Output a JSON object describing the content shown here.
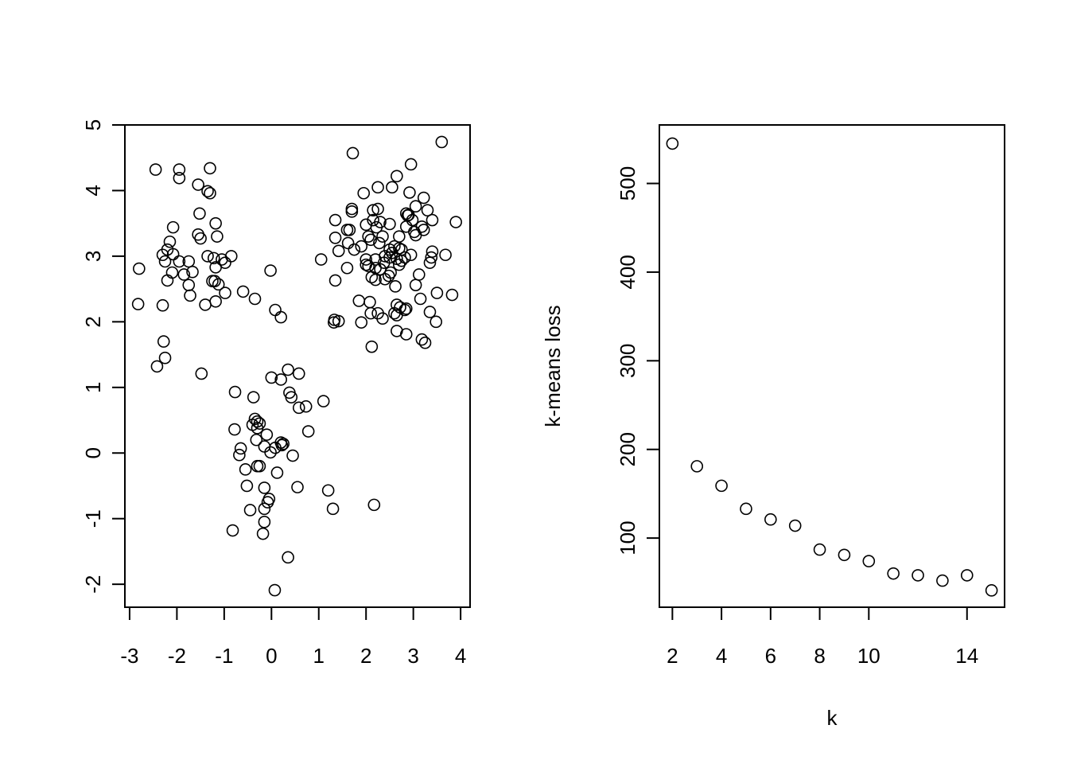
{
  "chart_data": [
    {
      "type": "scatter",
      "title": "",
      "xlabel": "",
      "ylabel": "",
      "xlim": [
        -3.1,
        4.2
      ],
      "ylim": [
        -2.35,
        5.0
      ],
      "x_ticks": [
        -3,
        -2,
        -1,
        0,
        1,
        2,
        3,
        4
      ],
      "x_tick_labels": [
        "-3",
        "-2",
        "-1",
        "0",
        "1",
        "2",
        "3",
        "4"
      ],
      "y_ticks": [
        -2,
        -1,
        0,
        1,
        2,
        3,
        4,
        5
      ],
      "y_tick_labels": [
        "-2",
        "-1",
        "0",
        "1",
        "2",
        "3",
        "4",
        "5"
      ],
      "grid": false,
      "marker": "open-circle",
      "points": [
        [
          -2.45,
          4.32
        ],
        [
          -1.95,
          4.32
        ],
        [
          -1.3,
          4.34
        ],
        [
          -1.95,
          4.19
        ],
        [
          -1.55,
          4.09
        ],
        [
          -1.35,
          3.99
        ],
        [
          -1.3,
          3.96
        ],
        [
          -1.52,
          3.65
        ],
        [
          -1.18,
          3.5
        ],
        [
          -2.08,
          3.44
        ],
        [
          -1.55,
          3.33
        ],
        [
          -1.5,
          3.27
        ],
        [
          -1.15,
          3.3
        ],
        [
          -2.15,
          3.22
        ],
        [
          -2.2,
          3.1
        ],
        [
          -2.3,
          3.02
        ],
        [
          -2.08,
          3.03
        ],
        [
          -1.35,
          3.0
        ],
        [
          -0.85,
          3.0
        ],
        [
          -2.25,
          2.92
        ],
        [
          -1.95,
          2.92
        ],
        [
          -1.75,
          2.92
        ],
        [
          -1.05,
          2.95
        ],
        [
          -1.22,
          2.97
        ],
        [
          -0.98,
          2.9
        ],
        [
          -1.18,
          2.83
        ],
        [
          -2.1,
          2.75
        ],
        [
          -1.85,
          2.72
        ],
        [
          -1.67,
          2.76
        ],
        [
          -2.2,
          2.63
        ],
        [
          -1.25,
          2.62
        ],
        [
          -1.2,
          2.62
        ],
        [
          -1.12,
          2.57
        ],
        [
          -1.75,
          2.56
        ],
        [
          -0.98,
          2.44
        ],
        [
          -0.6,
          2.46
        ],
        [
          -1.72,
          2.4
        ],
        [
          -0.35,
          2.35
        ],
        [
          -1.18,
          2.31
        ],
        [
          -2.82,
          2.27
        ],
        [
          -2.3,
          2.25
        ],
        [
          -1.4,
          2.26
        ],
        [
          -2.8,
          2.81
        ],
        [
          -0.02,
          2.78
        ],
        [
          0.08,
          2.18
        ],
        [
          0.2,
          2.07
        ],
        [
          -2.28,
          1.7
        ],
        [
          -2.25,
          1.45
        ],
        [
          -2.42,
          1.32
        ],
        [
          -1.48,
          1.21
        ],
        [
          0.0,
          1.15
        ],
        [
          0.2,
          1.12
        ],
        [
          0.35,
          1.27
        ],
        [
          0.58,
          1.21
        ],
        [
          0.38,
          0.92
        ],
        [
          0.42,
          0.85
        ],
        [
          -0.77,
          0.93
        ],
        [
          -0.38,
          0.85
        ],
        [
          1.1,
          0.79
        ],
        [
          0.58,
          0.69
        ],
        [
          0.73,
          0.71
        ],
        [
          -0.35,
          0.52
        ],
        [
          -0.3,
          0.48
        ],
        [
          -0.25,
          0.45
        ],
        [
          -0.4,
          0.43
        ],
        [
          -0.3,
          0.38
        ],
        [
          -0.78,
          0.36
        ],
        [
          0.78,
          0.33
        ],
        [
          -0.1,
          0.28
        ],
        [
          -0.32,
          0.2
        ],
        [
          0.2,
          0.16
        ],
        [
          0.25,
          0.14
        ],
        [
          0.22,
          0.12
        ],
        [
          0.08,
          0.08
        ],
        [
          -0.15,
          0.1
        ],
        [
          -0.65,
          0.07
        ],
        [
          -0.02,
          0.01
        ],
        [
          -0.68,
          -0.03
        ],
        [
          0.45,
          -0.04
        ],
        [
          -0.3,
          -0.2
        ],
        [
          -0.25,
          -0.2
        ],
        [
          -0.55,
          -0.25
        ],
        [
          0.12,
          -0.3
        ],
        [
          -0.52,
          -0.5
        ],
        [
          -0.15,
          -0.53
        ],
        [
          0.55,
          -0.52
        ],
        [
          1.2,
          -0.57
        ],
        [
          -0.05,
          -0.7
        ],
        [
          -0.08,
          -0.75
        ],
        [
          -0.15,
          -0.85
        ],
        [
          -0.45,
          -0.87
        ],
        [
          1.3,
          -0.85
        ],
        [
          2.17,
          -0.79
        ],
        [
          -0.15,
          -1.05
        ],
        [
          -0.82,
          -1.18
        ],
        [
          -0.18,
          -1.23
        ],
        [
          0.35,
          -1.59
        ],
        [
          0.07,
          -2.09
        ],
        [
          1.72,
          4.57
        ],
        [
          3.6,
          4.74
        ],
        [
          2.95,
          4.4
        ],
        [
          2.65,
          4.22
        ],
        [
          2.25,
          4.05
        ],
        [
          2.55,
          4.05
        ],
        [
          1.95,
          3.96
        ],
        [
          2.92,
          3.97
        ],
        [
          3.22,
          3.89
        ],
        [
          3.05,
          3.76
        ],
        [
          1.7,
          3.72
        ],
        [
          1.7,
          3.68
        ],
        [
          2.15,
          3.7
        ],
        [
          2.25,
          3.72
        ],
        [
          2.85,
          3.65
        ],
        [
          2.88,
          3.62
        ],
        [
          2.9,
          3.63
        ],
        [
          3.3,
          3.7
        ],
        [
          2.98,
          3.55
        ],
        [
          3.4,
          3.55
        ],
        [
          3.9,
          3.52
        ],
        [
          1.35,
          3.55
        ],
        [
          2.3,
          3.52
        ],
        [
          2.5,
          3.49
        ],
        [
          2.0,
          3.48
        ],
        [
          2.15,
          3.55
        ],
        [
          2.85,
          3.45
        ],
        [
          3.18,
          3.45
        ],
        [
          3.22,
          3.4
        ],
        [
          3.05,
          3.32
        ],
        [
          3.02,
          3.37
        ],
        [
          1.6,
          3.4
        ],
        [
          1.65,
          3.4
        ],
        [
          2.22,
          3.44
        ],
        [
          1.35,
          3.28
        ],
        [
          2.05,
          3.3
        ],
        [
          2.35,
          3.3
        ],
        [
          2.7,
          3.3
        ],
        [
          2.1,
          3.25
        ],
        [
          2.28,
          3.2
        ],
        [
          2.5,
          3.1
        ],
        [
          2.6,
          3.15
        ],
        [
          1.62,
          3.2
        ],
        [
          1.9,
          3.15
        ],
        [
          1.75,
          3.1
        ],
        [
          1.42,
          3.08
        ],
        [
          2.7,
          3.12
        ],
        [
          2.75,
          3.1
        ],
        [
          2.55,
          3.05
        ],
        [
          2.4,
          3.0
        ],
        [
          2.5,
          2.98
        ],
        [
          2.65,
          2.96
        ],
        [
          2.82,
          2.98
        ],
        [
          3.4,
          3.07
        ],
        [
          3.38,
          2.98
        ],
        [
          3.68,
          3.02
        ],
        [
          2.95,
          3.02
        ],
        [
          1.05,
          2.95
        ],
        [
          2.0,
          2.95
        ],
        [
          2.2,
          2.95
        ],
        [
          2.38,
          2.9
        ],
        [
          2.75,
          2.93
        ],
        [
          2.7,
          2.87
        ],
        [
          3.35,
          2.9
        ],
        [
          2.0,
          2.87
        ],
        [
          2.05,
          2.85
        ],
        [
          2.2,
          2.82
        ],
        [
          1.6,
          2.82
        ],
        [
          2.3,
          2.8
        ],
        [
          2.52,
          2.75
        ],
        [
          2.48,
          2.7
        ],
        [
          2.12,
          2.68
        ],
        [
          2.4,
          2.65
        ],
        [
          2.2,
          2.64
        ],
        [
          3.12,
          2.72
        ],
        [
          1.35,
          2.63
        ],
        [
          2.62,
          2.54
        ],
        [
          3.05,
          2.56
        ],
        [
          3.5,
          2.44
        ],
        [
          3.82,
          2.41
        ],
        [
          3.15,
          2.35
        ],
        [
          1.85,
          2.32
        ],
        [
          2.08,
          2.3
        ],
        [
          2.65,
          2.26
        ],
        [
          2.72,
          2.22
        ],
        [
          2.85,
          2.2
        ],
        [
          2.82,
          2.18
        ],
        [
          2.1,
          2.13
        ],
        [
          2.25,
          2.13
        ],
        [
          2.6,
          2.13
        ],
        [
          3.35,
          2.15
        ],
        [
          2.65,
          2.1
        ],
        [
          2.35,
          2.05
        ],
        [
          1.9,
          1.99
        ],
        [
          1.33,
          2.03
        ],
        [
          1.32,
          1.99
        ],
        [
          1.42,
          2.01
        ],
        [
          3.48,
          2.0
        ],
        [
          2.65,
          1.86
        ],
        [
          2.85,
          1.81
        ],
        [
          3.18,
          1.73
        ],
        [
          3.25,
          1.68
        ],
        [
          2.12,
          1.62
        ]
      ]
    },
    {
      "type": "scatter",
      "title": "",
      "xlabel": "k",
      "ylabel": "k-means loss",
      "xlim": [
        1.47,
        15.53
      ],
      "ylim": [
        22,
        566
      ],
      "x_ticks": [
        2,
        4,
        6,
        8,
        10,
        14
      ],
      "x_tick_labels": [
        "2",
        "4",
        "6",
        "8",
        "10",
        "14"
      ],
      "y_ticks": [
        100,
        200,
        300,
        400,
        500
      ],
      "y_tick_labels": [
        "100",
        "200",
        "300",
        "400",
        "500"
      ],
      "grid": false,
      "marker": "open-circle",
      "points": [
        [
          2,
          545
        ],
        [
          3,
          181
        ],
        [
          4,
          159
        ],
        [
          5,
          133
        ],
        [
          6,
          121
        ],
        [
          7,
          114
        ],
        [
          8,
          87
        ],
        [
          9,
          81
        ],
        [
          10,
          74
        ],
        [
          11,
          60
        ],
        [
          12,
          58
        ],
        [
          13,
          52
        ],
        [
          14,
          58
        ],
        [
          15,
          41
        ]
      ]
    }
  ]
}
